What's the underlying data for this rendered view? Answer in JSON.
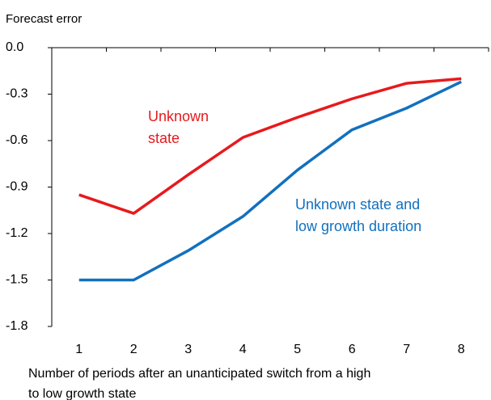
{
  "chart_data": {
    "type": "line",
    "ylabel": "Forecast error",
    "xlabel": [
      "Number of periods after an unanticipated switch from a high",
      "to low growth state"
    ],
    "categories": [
      "1",
      "2",
      "3",
      "4",
      "5",
      "6",
      "7",
      "8"
    ],
    "series": [
      {
        "color": "#e8191c",
        "values": [
          -0.95,
          -1.07,
          -0.82,
          -0.58,
          -0.45,
          -0.33,
          -0.23,
          -0.2
        ]
      },
      {
        "color": "#1270be",
        "values": [
          -1.5,
          -1.5,
          -1.31,
          -1.09,
          -0.79,
          -0.53,
          -0.39,
          -0.22
        ]
      }
    ],
    "annotations": [
      {
        "lines": [
          "Unknown",
          "state"
        ],
        "color": "#e8191c"
      },
      {
        "lines": [
          "Unknown state and",
          "low growth duration"
        ],
        "color": "#1270be"
      }
    ],
    "ylim": [
      -1.8,
      0
    ],
    "yticks": [
      {
        "value": 0,
        "label": "0.0"
      },
      -0.3,
      -0.6,
      -0.9,
      -1.2,
      -1.5,
      -1.8
    ]
  }
}
